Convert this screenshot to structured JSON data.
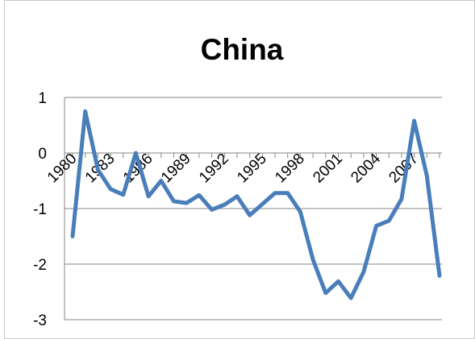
{
  "chart_data": {
    "type": "line",
    "title": "China",
    "xlabel": "",
    "ylabel": "",
    "x": [
      1980,
      1981,
      1982,
      1983,
      1984,
      1985,
      1986,
      1987,
      1988,
      1989,
      1990,
      1991,
      1992,
      1993,
      1994,
      1995,
      1996,
      1997,
      1998,
      1999,
      2000,
      2001,
      2002,
      2003,
      2004,
      2005,
      2006,
      2007,
      2008,
      2009
    ],
    "x_tick_labels": [
      "1980",
      "1983",
      "1986",
      "1989",
      "1992",
      "1995",
      "1998",
      "2001",
      "2004",
      "2007"
    ],
    "ylim": [
      -3,
      1
    ],
    "y_ticks": [
      "1",
      "0",
      "-1",
      "-2",
      "-3"
    ],
    "y_tick_values": [
      1,
      0,
      -1,
      -2,
      -3
    ],
    "grid": true,
    "legend": "none",
    "series": [
      {
        "color": "#4a7ebb",
        "values": [
          -1.5,
          0.75,
          -0.3,
          -0.65,
          -0.75,
          0.0,
          -0.78,
          -0.5,
          -0.87,
          -0.9,
          -0.76,
          -1.02,
          -0.93,
          -0.78,
          -1.12,
          -0.92,
          -0.72,
          -0.72,
          -1.06,
          -1.92,
          -2.52,
          -2.31,
          -2.61,
          -2.14,
          -1.31,
          -1.22,
          -0.83,
          0.58,
          -0.41,
          -2.21
        ]
      }
    ]
  }
}
